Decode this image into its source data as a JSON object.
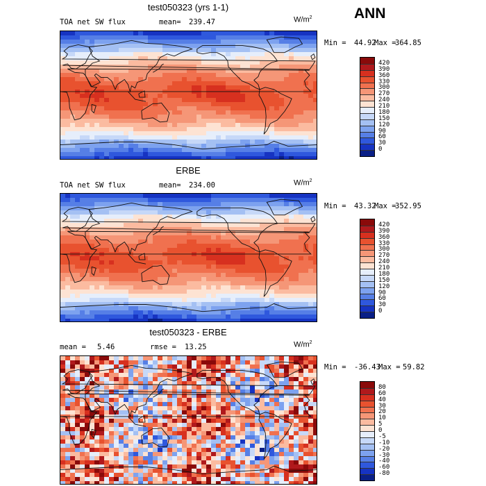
{
  "season": "ANN",
  "units_base": "W/m",
  "units_exp": "2",
  "panels": [
    {
      "title": "test050323 (yrs 1-1)",
      "left_label": "TOA net SW flux",
      "stat_label": "mean=",
      "stat_value": "239.47",
      "min_label": "Min =",
      "min_value": "44.92",
      "max_label": "Max =",
      "max_value": "364.85",
      "legend_ticks": [
        "420",
        "390",
        "360",
        "330",
        "300",
        "270",
        "240",
        "210",
        "180",
        "150",
        "120",
        "90",
        "60",
        "30",
        "0"
      ],
      "legend_colors": [
        "#8a0a0a",
        "#b0191c",
        "#d7301f",
        "#e8522f",
        "#f0714f",
        "#f59677",
        "#fbbba0",
        "#fde3d3",
        "#e6eefb",
        "#c6d8f8",
        "#a4c0f3",
        "#7da2ef",
        "#567fe6",
        "#2f58dd",
        "#1633c2",
        "#0a1f86"
      ]
    },
    {
      "title": "ERBE",
      "left_label": "TOA net SW flux",
      "stat_label": "mean=",
      "stat_value": "234.00",
      "min_label": "Min =",
      "min_value": "43.32",
      "max_label": "Max =",
      "max_value": "352.95",
      "legend_ticks": [
        "420",
        "390",
        "360",
        "330",
        "300",
        "270",
        "240",
        "210",
        "180",
        "150",
        "120",
        "90",
        "60",
        "30",
        "0"
      ],
      "legend_colors": [
        "#8a0a0a",
        "#b0191c",
        "#d7301f",
        "#e8522f",
        "#f0714f",
        "#f59677",
        "#fbbba0",
        "#fde3d3",
        "#e6eefb",
        "#c6d8f8",
        "#a4c0f3",
        "#7da2ef",
        "#567fe6",
        "#2f58dd",
        "#1633c2",
        "#0a1f86"
      ]
    },
    {
      "title": "test050323 - ERBE",
      "left_label": "mean =",
      "left_value": "5.46",
      "stat_label": "rmse =",
      "stat_value": "13.25",
      "min_label": "Min =",
      "min_value": "-36.43",
      "max_label": "Max =",
      "max_value": "59.82",
      "legend_ticks": [
        "80",
        "60",
        "40",
        "30",
        "20",
        "10",
        "5",
        "0",
        "-5",
        "-10",
        "-20",
        "-30",
        "-40",
        "-60",
        "-80"
      ],
      "legend_colors": [
        "#8a0a0a",
        "#b0191c",
        "#d7301f",
        "#e8522f",
        "#f0714f",
        "#f59677",
        "#fbbba0",
        "#fde3d3",
        "#e6eefb",
        "#c6d8f8",
        "#a4c0f3",
        "#7da2ef",
        "#567fe6",
        "#2f58dd",
        "#1633c2",
        "#0a1f86"
      ]
    }
  ]
}
